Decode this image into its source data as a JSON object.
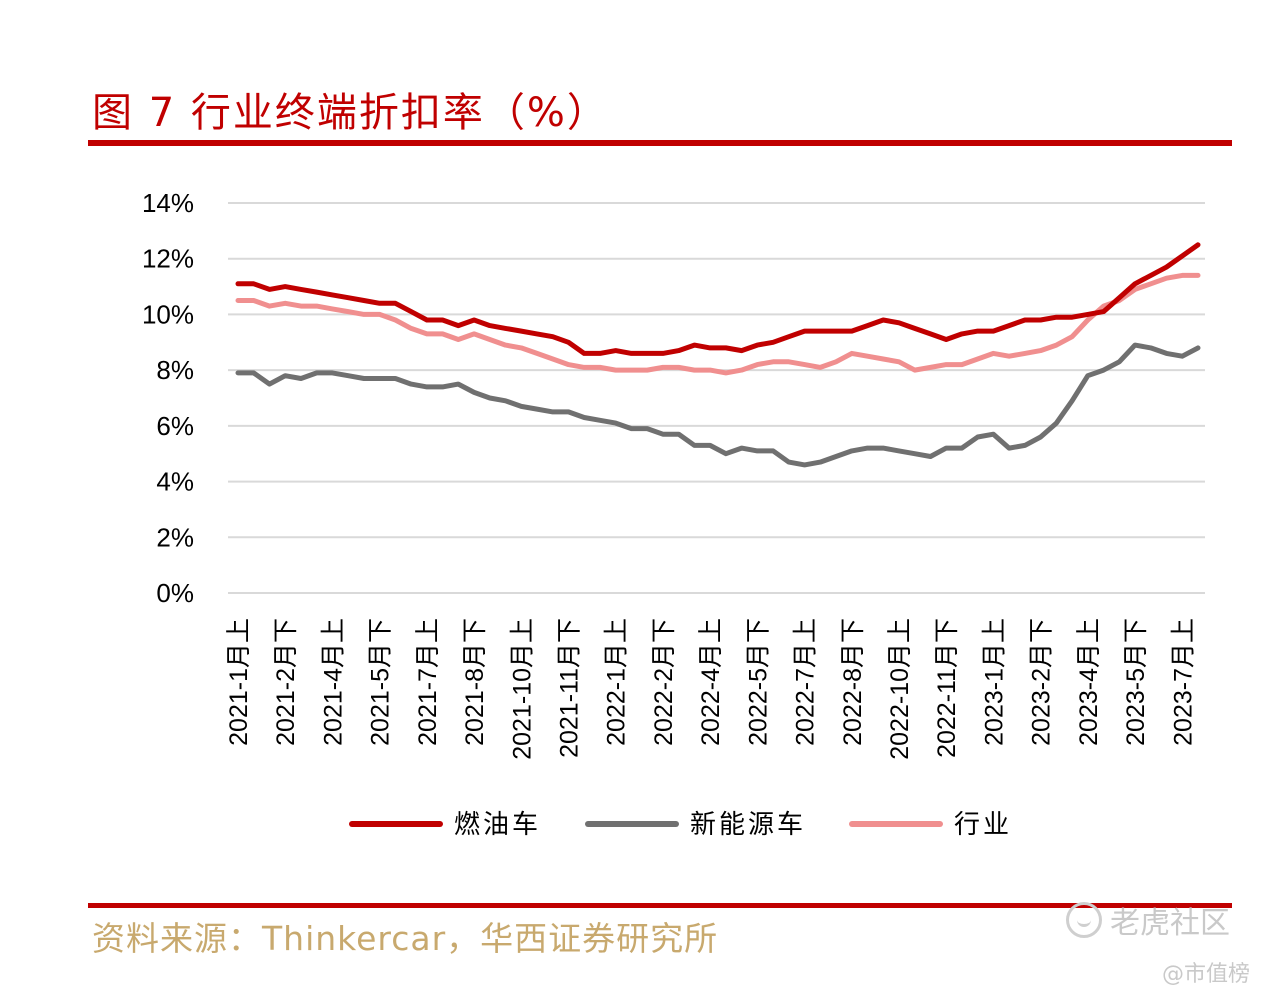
{
  "header": {
    "title": "图 7 行业终端折扣率（%）"
  },
  "footer": {
    "source": "资料来源：Thinkercar，华西证券研究所"
  },
  "watermark": {
    "main": "老虎社区",
    "sub": "@市值榜"
  },
  "colors": {
    "accent": "#c00000",
    "fuel": "#c00000",
    "nev": "#707070",
    "industry": "#f08f8f",
    "grid": "#d9d9d9",
    "source": "#c8a96e"
  },
  "chart_data": {
    "type": "line",
    "title": "行业终端折扣率（%）",
    "xlabel": "",
    "ylabel": "",
    "ylim": [
      0,
      14
    ],
    "yticks": [
      "0%",
      "2%",
      "4%",
      "6%",
      "8%",
      "10%",
      "12%",
      "14%"
    ],
    "grid": true,
    "legend_position": "bottom",
    "categories": [
      "2021-1月上",
      "2021-1月下",
      "2021-2月上",
      "2021-2月下",
      "2021-3月上",
      "2021-3月下",
      "2021-4月上",
      "2021-4月下",
      "2021-5月上",
      "2021-5月下",
      "2021-6月上",
      "2021-6月下",
      "2021-7月上",
      "2021-7月下",
      "2021-8月上",
      "2021-8月下",
      "2021-9月上",
      "2021-9月下",
      "2021-10月上",
      "2021-10月下",
      "2021-11月上",
      "2021-11月下",
      "2021-12月上",
      "2021-12月下",
      "2022-1月上",
      "2022-1月下",
      "2022-2月上",
      "2022-2月下",
      "2022-3月上",
      "2022-3月下",
      "2022-4月上",
      "2022-4月下",
      "2022-5月上",
      "2022-5月下",
      "2022-6月上",
      "2022-6月下",
      "2022-7月上",
      "2022-7月下",
      "2022-8月上",
      "2022-8月下",
      "2022-9月上",
      "2022-9月下",
      "2022-10月上",
      "2022-10月下",
      "2022-11月上",
      "2022-11月下",
      "2022-12月上",
      "2022-12月下",
      "2023-1月上",
      "2023-1月下",
      "2023-2月上",
      "2023-2月下",
      "2023-3月上",
      "2023-3月下",
      "2023-4月上",
      "2023-4月下",
      "2023-5月上",
      "2023-5月下",
      "2023-6月上",
      "2023-6月下",
      "2023-7月上",
      "2023-7月下"
    ],
    "tick_labels": [
      "2021-1月上",
      "2021-2月下",
      "2021-4月上",
      "2021-5月下",
      "2021-7月上",
      "2021-8月下",
      "2021-10月上",
      "2021-11月下",
      "2022-1月上",
      "2022-2月下",
      "2022-4月上",
      "2022-5月下",
      "2022-7月上",
      "2022-8月下",
      "2022-10月上",
      "2022-11月下",
      "2023-1月上",
      "2023-2月下",
      "2023-4月上",
      "2023-5月下",
      "2023-7月上"
    ],
    "series": [
      {
        "name": "燃油车",
        "color": "#c00000",
        "values": [
          11.1,
          11.1,
          10.9,
          11.0,
          10.9,
          10.8,
          10.7,
          10.6,
          10.5,
          10.4,
          10.4,
          10.1,
          9.8,
          9.8,
          9.6,
          9.8,
          9.6,
          9.5,
          9.4,
          9.3,
          9.2,
          9.0,
          8.6,
          8.6,
          8.7,
          8.6,
          8.6,
          8.6,
          8.7,
          8.9,
          8.8,
          8.8,
          8.7,
          8.9,
          9.0,
          9.2,
          9.4,
          9.4,
          9.4,
          9.4,
          9.6,
          9.8,
          9.7,
          9.5,
          9.3,
          9.1,
          9.3,
          9.4,
          9.4,
          9.6,
          9.8,
          9.8,
          9.9,
          9.9,
          10.0,
          10.1,
          10.6,
          11.1,
          11.4,
          11.7,
          12.1,
          12.5
        ]
      },
      {
        "name": "新能源车",
        "color": "#707070",
        "values": [
          7.9,
          7.9,
          7.5,
          7.8,
          7.7,
          7.9,
          7.9,
          7.8,
          7.7,
          7.7,
          7.7,
          7.5,
          7.4,
          7.4,
          7.5,
          7.2,
          7.0,
          6.9,
          6.7,
          6.6,
          6.5,
          6.5,
          6.3,
          6.2,
          6.1,
          5.9,
          5.9,
          5.7,
          5.7,
          5.3,
          5.3,
          5.0,
          5.2,
          5.1,
          5.1,
          4.7,
          4.6,
          4.7,
          4.9,
          5.1,
          5.2,
          5.2,
          5.1,
          5.0,
          4.9,
          5.2,
          5.2,
          5.6,
          5.7,
          5.2,
          5.3,
          5.6,
          6.1,
          6.9,
          7.8,
          8.0,
          8.3,
          8.9,
          8.8,
          8.6,
          8.5,
          8.8
        ]
      },
      {
        "name": "行业",
        "color": "#f08f8f",
        "values": [
          10.5,
          10.5,
          10.3,
          10.4,
          10.3,
          10.3,
          10.2,
          10.1,
          10.0,
          10.0,
          9.8,
          9.5,
          9.3,
          9.3,
          9.1,
          9.3,
          9.1,
          8.9,
          8.8,
          8.6,
          8.4,
          8.2,
          8.1,
          8.1,
          8.0,
          8.0,
          8.0,
          8.1,
          8.1,
          8.0,
          8.0,
          7.9,
          8.0,
          8.2,
          8.3,
          8.3,
          8.2,
          8.1,
          8.3,
          8.6,
          8.5,
          8.4,
          8.3,
          8.0,
          8.1,
          8.2,
          8.2,
          8.4,
          8.6,
          8.5,
          8.6,
          8.7,
          8.9,
          9.2,
          9.8,
          10.3,
          10.5,
          10.9,
          11.1,
          11.3,
          11.4,
          11.4
        ]
      }
    ]
  }
}
